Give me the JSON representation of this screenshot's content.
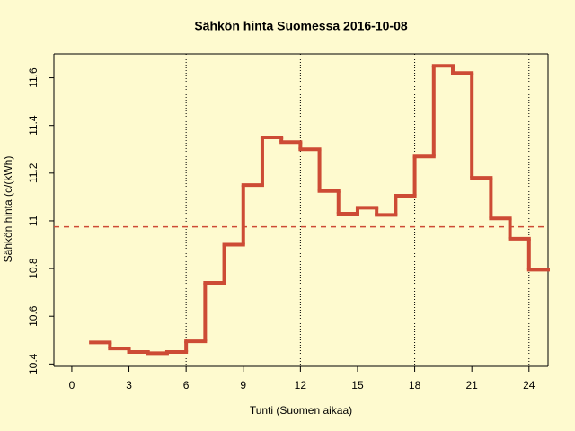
{
  "chart_data": {
    "type": "step",
    "title": "Sähkön hinta Suomessa 2016-10-08",
    "x_label": "Tunti (Suomen aikaa)",
    "y_label": "Sähkön hinta (c/(kWh)",
    "x": [
      1,
      2,
      3,
      4,
      5,
      6,
      7,
      8,
      9,
      10,
      11,
      12,
      13,
      14,
      15,
      16,
      17,
      18,
      19,
      20,
      21,
      22,
      23,
      24
    ],
    "values": [
      10.49,
      10.465,
      10.45,
      10.445,
      10.45,
      10.495,
      10.74,
      10.9,
      11.15,
      11.35,
      11.33,
      11.3,
      11.125,
      11.03,
      11.055,
      11.025,
      11.105,
      11.27,
      11.65,
      11.62,
      11.18,
      11.01,
      10.925,
      10.795
    ],
    "color": "#cd4b35",
    "mean_line": 10.975,
    "vlines": [
      6,
      12,
      18,
      24
    ],
    "xlim": [
      -0.94,
      25
    ],
    "ylim": [
      10.39,
      11.7
    ],
    "xticks": [
      0,
      3,
      6,
      9,
      12,
      15,
      18,
      21,
      24
    ],
    "yticks": [
      10.4,
      10.6,
      10.8,
      11.0,
      11.2,
      11.4,
      11.6
    ]
  }
}
